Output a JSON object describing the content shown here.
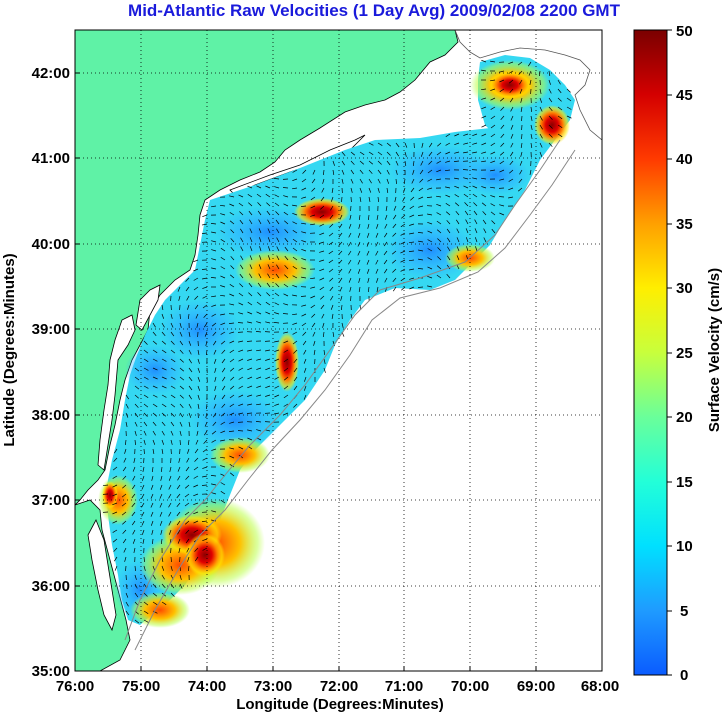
{
  "title": "Mid-Atlantic Raw Velocities (1 Day Avg) 2009/02/08 2200 GMT",
  "x_axis": {
    "label": "Longitude (Degrees:Minutes)",
    "ticks": [
      "76:00",
      "75:00",
      "74:00",
      "73:00",
      "72:00",
      "71:00",
      "70:00",
      "69:00",
      "68:00"
    ]
  },
  "y_axis": {
    "label": "Latitude (Degrees:Minutes)",
    "ticks": [
      "35:00",
      "36:00",
      "37:00",
      "38:00",
      "39:00",
      "40:00",
      "41:00",
      "42:00"
    ]
  },
  "colorbar": {
    "label": "Surface Velocity (cm/s)",
    "ticks": [
      "0",
      "5",
      "10",
      "15",
      "20",
      "25",
      "30",
      "35",
      "40",
      "45",
      "50"
    ],
    "min": 0,
    "max": 50
  },
  "map_data": {
    "lon_range": [
      -76,
      -68
    ],
    "lat_range": [
      35,
      42.5
    ],
    "grid": "dotted",
    "land_color": "#5ff2a6",
    "high_speed_regions": [
      {
        "lon": -73.8,
        "lat": 36.6,
        "speed": 50
      },
      {
        "lon": -72.3,
        "lat": 40.4,
        "speed": 45
      },
      {
        "lon": -72.9,
        "lat": 38.3,
        "speed": 45
      },
      {
        "lon": -69.1,
        "lat": 41.9,
        "speed": 45
      },
      {
        "lon": -68.7,
        "lat": 41.3,
        "speed": 45
      },
      {
        "lon": -74.5,
        "lat": 36.2,
        "speed": 35
      },
      {
        "lon": -75.3,
        "lat": 37.2,
        "speed": 38
      }
    ]
  }
}
